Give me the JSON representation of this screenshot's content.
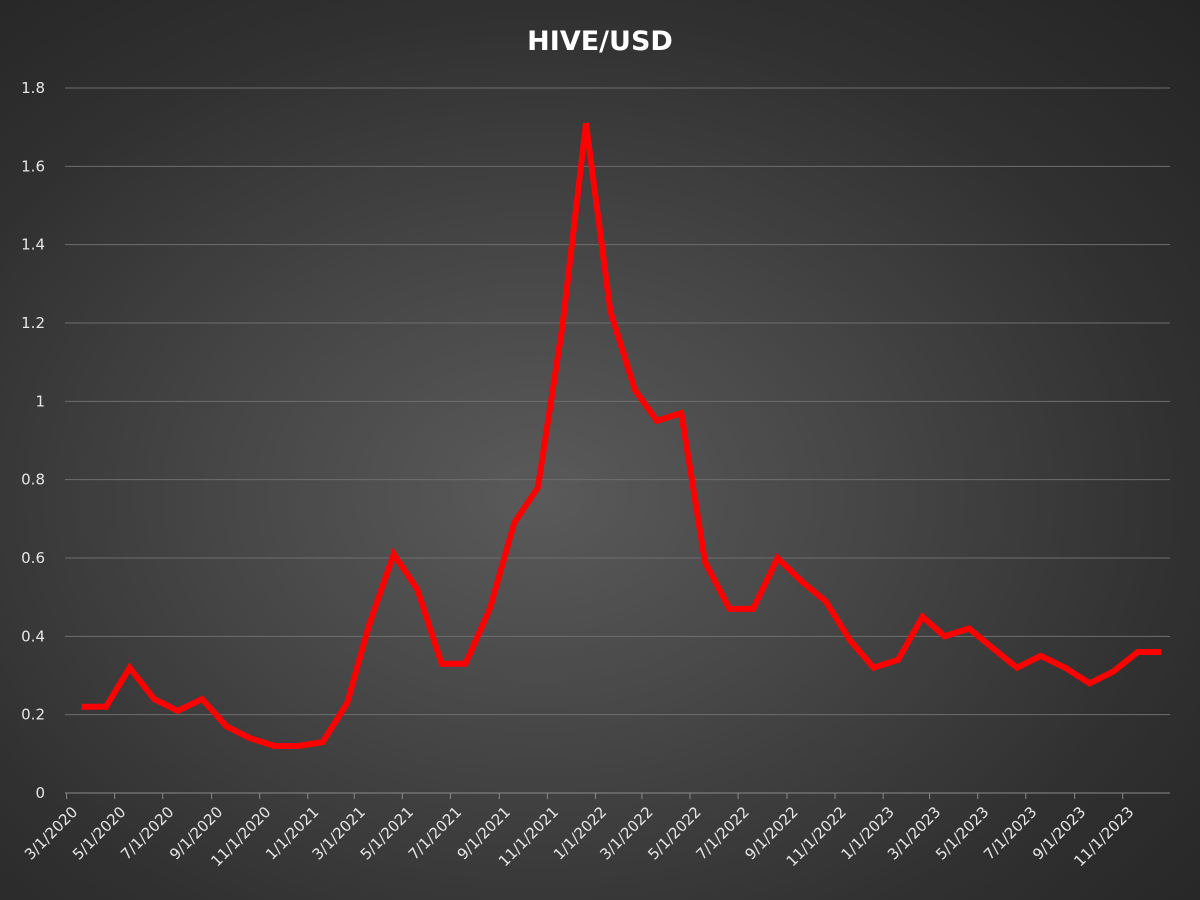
{
  "chart_data": {
    "type": "line",
    "title": "HIVE/USD",
    "xlabel": "",
    "ylabel": "",
    "ylim": [
      0,
      1.8
    ],
    "yticks": [
      "0",
      "0.2",
      "0.4",
      "0.6",
      "0.8",
      "1",
      "1.2",
      "1.4",
      "1.6",
      "1.8"
    ],
    "x_tick_labels": [
      "3/1/2020",
      "5/1/2020",
      "7/1/2020",
      "9/1/2020",
      "11/1/2020",
      "1/1/2021",
      "3/1/2021",
      "5/1/2021",
      "7/1/2021",
      "9/1/2021",
      "11/1/2021",
      "1/1/2022",
      "3/1/2022",
      "5/1/2022",
      "7/1/2022",
      "9/1/2022",
      "11/1/2022",
      "1/1/2023",
      "3/1/2023",
      "5/1/2023",
      "7/1/2023",
      "9/1/2023",
      "11/1/2023"
    ],
    "grid": true,
    "series": [
      {
        "color": "#ff0000",
        "x": [
          "2020-03-20",
          "2020-04-20",
          "2020-05-20",
          "2020-06-20",
          "2020-07-20",
          "2020-08-20",
          "2020-09-20",
          "2020-10-20",
          "2020-11-20",
          "2020-12-20",
          "2021-01-20",
          "2021-02-20",
          "2021-03-20",
          "2021-04-20",
          "2021-05-20",
          "2021-06-20",
          "2021-07-20",
          "2021-08-20",
          "2021-09-20",
          "2021-10-20",
          "2021-11-20",
          "2021-12-20",
          "2022-01-20",
          "2022-02-20",
          "2022-03-20",
          "2022-04-20",
          "2022-05-20",
          "2022-06-20",
          "2022-07-20",
          "2022-08-20",
          "2022-09-20",
          "2022-10-20",
          "2022-11-20",
          "2022-12-20",
          "2023-01-20",
          "2023-02-20",
          "2023-03-20",
          "2023-04-20",
          "2023-05-20",
          "2023-06-20",
          "2023-07-20",
          "2023-08-20",
          "2023-09-20",
          "2023-10-20",
          "2023-11-20",
          "2023-12-20"
        ],
        "values": [
          0.22,
          0.22,
          0.32,
          0.24,
          0.21,
          0.24,
          0.17,
          0.14,
          0.12,
          0.12,
          0.13,
          0.23,
          0.43,
          0.61,
          0.52,
          0.33,
          0.33,
          0.47,
          0.69,
          0.78,
          1.19,
          1.71,
          1.23,
          1.03,
          0.95,
          0.97,
          0.59,
          0.47,
          0.47,
          0.6,
          0.54,
          0.49,
          0.39,
          0.32,
          0.34,
          0.45,
          0.4,
          0.42,
          0.37,
          0.32,
          0.35,
          0.32,
          0.28,
          0.31,
          0.36,
          0.36
        ]
      }
    ]
  }
}
